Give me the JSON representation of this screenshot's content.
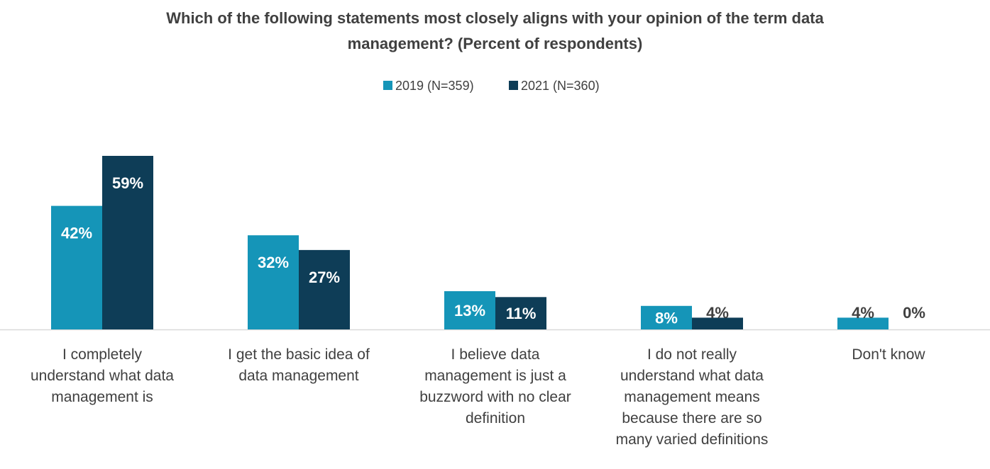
{
  "chart_data": {
    "type": "bar",
    "title_lines": [
      "Which of the following statements most closely aligns with your opinion of the term data",
      "management? (Percent of respondents)"
    ],
    "categories": [
      [
        "I completely",
        "understand what data",
        "management is"
      ],
      [
        "I get the basic idea of",
        "data management"
      ],
      [
        "I believe data",
        "management is just a",
        "buzzword with no clear",
        "definition"
      ],
      [
        "I do not really",
        "understand what data",
        "management means",
        "because there are so",
        "many varied definitions"
      ],
      [
        "Don't know"
      ]
    ],
    "series": [
      {
        "name": "2019 (N=359)",
        "color": "#1595B8",
        "values": [
          42,
          32,
          13,
          8,
          4
        ],
        "labels": [
          "42%",
          "32%",
          "13%",
          "8%",
          "4%"
        ]
      },
      {
        "name": "2021 (N=360)",
        "color": "#0E3D57",
        "values": [
          59,
          27,
          11,
          4,
          0
        ],
        "labels": [
          "59%",
          "27%",
          "11%",
          "4%",
          "0%"
        ]
      }
    ],
    "ylim": [
      0,
      60
    ],
    "grid": false,
    "legend_position": "top-center",
    "axis_color": "#d9d9d9"
  }
}
